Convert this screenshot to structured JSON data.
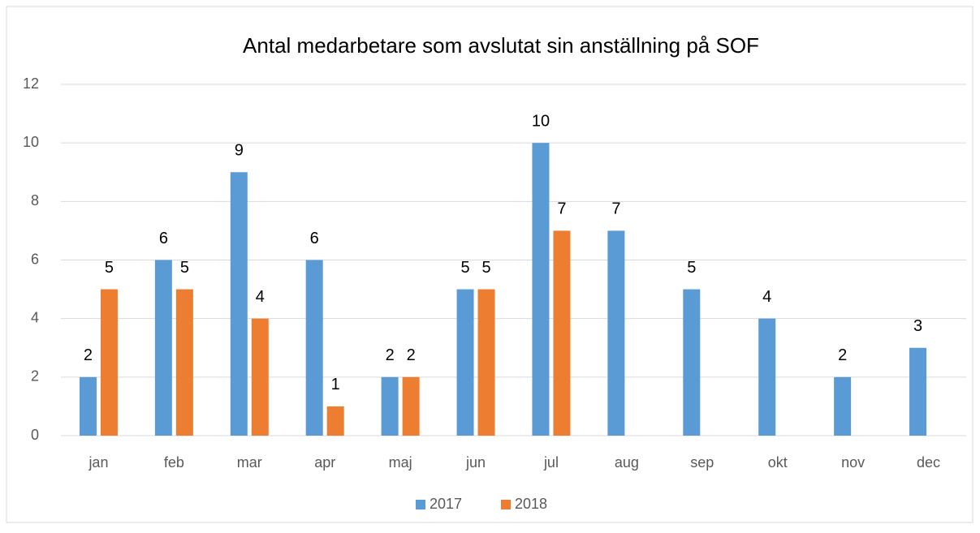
{
  "chart_data": {
    "type": "bar",
    "title": "Antal medarbetare som avslutat sin anställning på SOF",
    "categories": [
      "jan",
      "feb",
      "mar",
      "apr",
      "maj",
      "jun",
      "jul",
      "aug",
      "sep",
      "okt",
      "nov",
      "dec"
    ],
    "series": [
      {
        "name": "2017",
        "color": "#5b9bd5",
        "values": [
          2,
          6,
          9,
          6,
          2,
          5,
          10,
          7,
          5,
          4,
          2,
          3
        ]
      },
      {
        "name": "2018",
        "color": "#ed7d31",
        "values": [
          5,
          5,
          4,
          1,
          2,
          5,
          7,
          null,
          null,
          null,
          null,
          null
        ]
      }
    ],
    "ylim": [
      0,
      12
    ],
    "yticks": [
      0,
      2,
      4,
      6,
      8,
      10,
      12
    ],
    "grid": true,
    "legend": "bottom"
  }
}
